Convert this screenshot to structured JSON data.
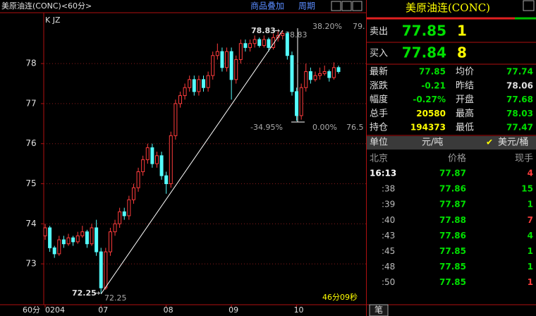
{
  "header": {
    "title": "美原油连(CONC)<60分>",
    "overlay": "商品叠加",
    "period": "周期"
  },
  "chart_data": {
    "type": "candlestick",
    "indicator": "K JZ",
    "x_axis_label": "60分",
    "timer": "46分09秒",
    "colors": {
      "up": "#ff3c3c",
      "down": "#54fcfc"
    },
    "ylim": [
      71.98,
      79.27
    ],
    "yticks": [
      73,
      74,
      75,
      76,
      77,
      78
    ],
    "grid": true,
    "categories": [
      "0204",
      null,
      null,
      null,
      null,
      null,
      null,
      null,
      null,
      null,
      null,
      null,
      "07",
      null,
      null,
      null,
      null,
      null,
      null,
      null,
      null,
      null,
      null,
      null,
      null,
      null,
      "08",
      null,
      null,
      null,
      null,
      null,
      null,
      null,
      null,
      null,
      null,
      null,
      null,
      null,
      "09",
      null,
      null,
      null,
      null,
      null,
      null,
      null,
      null,
      null,
      null,
      null,
      null,
      null,
      "10",
      null,
      null,
      null,
      null,
      null,
      null,
      null,
      null,
      null
    ],
    "ohlc": [
      [
        73.7,
        74.0,
        73.6,
        73.9
      ],
      [
        73.9,
        73.95,
        73.3,
        73.4
      ],
      [
        73.4,
        73.45,
        73.15,
        73.25
      ],
      [
        73.25,
        73.7,
        73.2,
        73.6
      ],
      [
        73.6,
        73.7,
        73.4,
        73.5
      ],
      [
        73.5,
        73.75,
        73.45,
        73.65
      ],
      [
        73.65,
        73.7,
        73.45,
        73.55
      ],
      [
        73.55,
        73.8,
        73.5,
        73.7
      ],
      [
        73.7,
        73.95,
        73.65,
        73.8
      ],
      [
        73.8,
        73.85,
        73.4,
        73.5
      ],
      [
        73.5,
        74.0,
        73.45,
        73.9
      ],
      [
        73.9,
        74.1,
        73.2,
        73.3
      ],
      [
        73.3,
        73.4,
        72.25,
        72.4
      ],
      [
        72.4,
        73.4,
        72.35,
        73.3
      ],
      [
        73.3,
        73.9,
        73.2,
        73.8
      ],
      [
        73.8,
        74.1,
        73.7,
        74.0
      ],
      [
        74.0,
        74.4,
        73.9,
        74.3
      ],
      [
        74.3,
        74.4,
        74.1,
        74.2
      ],
      [
        74.2,
        74.7,
        74.1,
        74.6
      ],
      [
        74.6,
        75.0,
        74.5,
        74.9
      ],
      [
        74.9,
        75.4,
        74.8,
        75.3
      ],
      [
        75.3,
        75.7,
        75.2,
        75.6
      ],
      [
        75.6,
        76.0,
        75.5,
        75.9
      ],
      [
        75.9,
        76.0,
        75.4,
        75.5
      ],
      [
        75.5,
        75.8,
        75.4,
        75.7
      ],
      [
        75.7,
        75.8,
        75.1,
        75.2
      ],
      [
        75.2,
        75.3,
        74.75,
        75.0
      ],
      [
        75.0,
        76.3,
        74.9,
        76.2
      ],
      [
        76.2,
        77.1,
        76.1,
        77.0
      ],
      [
        77.0,
        77.3,
        76.9,
        77.2
      ],
      [
        77.2,
        77.5,
        77.1,
        77.4
      ],
      [
        77.4,
        77.7,
        77.3,
        77.6
      ],
      [
        77.6,
        77.7,
        77.2,
        77.3
      ],
      [
        77.3,
        77.7,
        77.2,
        77.6
      ],
      [
        77.6,
        77.7,
        77.3,
        77.4
      ],
      [
        77.4,
        77.8,
        77.3,
        77.7
      ],
      [
        77.7,
        78.3,
        77.6,
        78.2
      ],
      [
        78.2,
        78.5,
        78.1,
        78.3
      ],
      [
        78.3,
        78.4,
        77.8,
        77.9
      ],
      [
        77.9,
        78.4,
        77.8,
        78.3
      ],
      [
        78.3,
        78.4,
        77.1,
        77.6
      ],
      [
        77.6,
        78.2,
        77.5,
        78.1
      ],
      [
        78.1,
        78.6,
        78.0,
        78.5
      ],
      [
        78.5,
        78.6,
        78.3,
        78.4
      ],
      [
        78.4,
        78.6,
        78.3,
        78.5
      ],
      [
        78.5,
        78.7,
        78.4,
        78.6
      ],
      [
        78.6,
        78.65,
        78.4,
        78.45
      ],
      [
        78.45,
        78.7,
        78.4,
        78.6
      ],
      [
        78.6,
        78.65,
        78.3,
        78.4
      ],
      [
        78.4,
        78.75,
        78.35,
        78.65
      ],
      [
        78.65,
        78.8,
        78.55,
        78.7
      ],
      [
        78.7,
        78.83,
        78.6,
        78.75
      ],
      [
        78.75,
        78.8,
        78.1,
        78.2
      ],
      [
        78.2,
        78.3,
        77.2,
        77.3
      ],
      [
        77.3,
        77.4,
        76.57,
        76.7
      ],
      [
        76.7,
        77.5,
        76.6,
        77.4
      ],
      [
        77.4,
        78.0,
        77.3,
        77.8
      ],
      [
        77.8,
        77.9,
        77.5,
        77.6
      ],
      [
        77.6,
        77.8,
        77.55,
        77.7
      ],
      [
        77.7,
        77.9,
        77.6,
        77.75
      ],
      [
        77.75,
        77.95,
        77.7,
        77.8
      ],
      [
        77.8,
        77.85,
        77.55,
        77.65
      ],
      [
        77.65,
        78.03,
        77.6,
        77.9
      ],
      [
        77.9,
        77.95,
        77.75,
        77.8
      ]
    ],
    "annotations": {
      "high_label": 78.83,
      "high_fib_label": 78.83,
      "low_label": 72.25,
      "low_fib_label": 72.25,
      "fib_top_left": "38.20%",
      "fib_top_right": "79.",
      "fib_bottom_left": "-34.95%",
      "fib_bottom_mid": "0.00%",
      "fib_bottom_right": 76.5
    }
  },
  "quote": {
    "name": "美原油连(CONC)",
    "ask": {
      "label": "卖出",
      "price": 77.85,
      "volume": 1
    },
    "bid": {
      "label": "买入",
      "price": 77.84,
      "volume": 8
    },
    "stats": [
      {
        "label": "最新",
        "value": 77.85,
        "color": "#00e000"
      },
      {
        "label": "均价",
        "value": 77.74,
        "color": "#00e000"
      },
      {
        "label": "涨跌",
        "value": -0.21,
        "color": "#00e000"
      },
      {
        "label": "昨结",
        "value": 78.06,
        "color": "#e0e0e0"
      },
      {
        "label": "幅度",
        "value": "-0.27%",
        "color": "#00e000"
      },
      {
        "label": "开盘",
        "value": 77.68,
        "color": "#00e000"
      },
      {
        "label": "总手",
        "value": 20580,
        "color": "#ffff00"
      },
      {
        "label": "最高",
        "value": 78.03,
        "color": "#00e000"
      },
      {
        "label": "持仓",
        "value": 194373,
        "color": "#ffff00"
      },
      {
        "label": "最低",
        "value": 77.47,
        "color": "#00e000"
      }
    ],
    "units": {
      "label": "单位",
      "cny": "元/吨",
      "usd": "美元/桶",
      "check": "✔"
    },
    "ticks": {
      "header": [
        "北京",
        "价格",
        "现手"
      ],
      "rows": [
        {
          "time": "16:13",
          "price": 77.87,
          "volume": 4,
          "color": "#ff3c3c"
        },
        {
          "time": ":38",
          "price": 77.86,
          "volume": 15,
          "color": "#00e000"
        },
        {
          "time": ":39",
          "price": 77.87,
          "volume": 1,
          "color": "#00e000"
        },
        {
          "time": ":40",
          "price": 77.88,
          "volume": 7,
          "color": "#ff3c3c"
        },
        {
          "time": ":43",
          "price": 77.86,
          "volume": 4,
          "color": "#00e000"
        },
        {
          "time": ":45",
          "price": 77.85,
          "volume": 1,
          "color": "#00e000"
        },
        {
          "time": ":48",
          "price": 77.85,
          "volume": 1,
          "color": "#00e000"
        },
        {
          "time": ":50",
          "price": 77.85,
          "volume": 1,
          "color": "#ff3c3c"
        }
      ]
    },
    "tab": "笔"
  }
}
